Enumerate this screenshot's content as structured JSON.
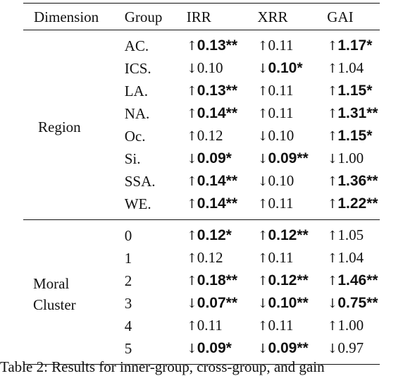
{
  "headers": {
    "dimension": "Dimension",
    "group": "Group",
    "irr": "IRR",
    "xrr": "XRR",
    "gai": "GAI"
  },
  "sections": [
    {
      "dimension": "Region",
      "rows": [
        {
          "group": "AC.",
          "irr": {
            "arrow": "↑",
            "value": "0.13",
            "stars": "**",
            "bold": true
          },
          "xrr": {
            "arrow": "↑",
            "value": "0.11",
            "stars": "",
            "bold": false
          },
          "gai": {
            "arrow": "↑",
            "value": "1.17",
            "stars": "*",
            "bold": true
          }
        },
        {
          "group": "ICS.",
          "irr": {
            "arrow": "↓",
            "value": "0.10",
            "stars": "",
            "bold": false
          },
          "xrr": {
            "arrow": "↓",
            "value": "0.10",
            "stars": "*",
            "bold": true
          },
          "gai": {
            "arrow": "↑",
            "value": "1.04",
            "stars": "",
            "bold": false
          }
        },
        {
          "group": "LA.",
          "irr": {
            "arrow": "↑",
            "value": "0.13",
            "stars": "**",
            "bold": true
          },
          "xrr": {
            "arrow": "↑",
            "value": "0.11",
            "stars": "",
            "bold": false
          },
          "gai": {
            "arrow": "↑",
            "value": "1.15",
            "stars": "*",
            "bold": true
          }
        },
        {
          "group": "NA.",
          "irr": {
            "arrow": "↑",
            "value": "0.14",
            "stars": "**",
            "bold": true
          },
          "xrr": {
            "arrow": "↑",
            "value": "0.11",
            "stars": "",
            "bold": false
          },
          "gai": {
            "arrow": "↑",
            "value": "1.31",
            "stars": "**",
            "bold": true
          }
        },
        {
          "group": "Oc.",
          "irr": {
            "arrow": "↑",
            "value": "0.12",
            "stars": "",
            "bold": false
          },
          "xrr": {
            "arrow": "↓",
            "value": "0.10",
            "stars": "",
            "bold": false
          },
          "gai": {
            "arrow": "↑",
            "value": "1.15",
            "stars": "*",
            "bold": true
          }
        },
        {
          "group": "Si.",
          "irr": {
            "arrow": "↓",
            "value": "0.09",
            "stars": "*",
            "bold": true
          },
          "xrr": {
            "arrow": "↓",
            "value": "0.09",
            "stars": "**",
            "bold": true
          },
          "gai": {
            "arrow": "↓",
            "value": "1.00",
            "stars": "",
            "bold": false
          }
        },
        {
          "group": "SSA.",
          "irr": {
            "arrow": "↑",
            "value": "0.14",
            "stars": "**",
            "bold": true
          },
          "xrr": {
            "arrow": "↓",
            "value": "0.10",
            "stars": "",
            "bold": false
          },
          "gai": {
            "arrow": "↑",
            "value": "1.36",
            "stars": "**",
            "bold": true
          }
        },
        {
          "group": "WE.",
          "irr": {
            "arrow": "↑",
            "value": "0.14",
            "stars": "**",
            "bold": true
          },
          "xrr": {
            "arrow": "↑",
            "value": "0.11",
            "stars": "",
            "bold": false
          },
          "gai": {
            "arrow": "↑",
            "value": "1.22",
            "stars": "**",
            "bold": true
          }
        }
      ]
    },
    {
      "dimension": "Moral Cluster",
      "dimension_lines": [
        "Moral",
        "Cluster"
      ],
      "rows": [
        {
          "group": "0",
          "irr": {
            "arrow": "↑",
            "value": "0.12",
            "stars": "*",
            "bold": true
          },
          "xrr": {
            "arrow": "↑",
            "value": "0.12",
            "stars": "**",
            "bold": true
          },
          "gai": {
            "arrow": "↑",
            "value": "1.05",
            "stars": "",
            "bold": false
          }
        },
        {
          "group": "1",
          "irr": {
            "arrow": "↑",
            "value": "0.12",
            "stars": "",
            "bold": false
          },
          "xrr": {
            "arrow": "↑",
            "value": "0.11",
            "stars": "",
            "bold": false
          },
          "gai": {
            "arrow": "↑",
            "value": "1.04",
            "stars": "",
            "bold": false
          }
        },
        {
          "group": "2",
          "irr": {
            "arrow": "↑",
            "value": "0.18",
            "stars": "**",
            "bold": true
          },
          "xrr": {
            "arrow": "↑",
            "value": "0.12",
            "stars": "**",
            "bold": true
          },
          "gai": {
            "arrow": "↑",
            "value": "1.46",
            "stars": "**",
            "bold": true
          }
        },
        {
          "group": "3",
          "irr": {
            "arrow": "↓",
            "value": "0.07",
            "stars": "**",
            "bold": true
          },
          "xrr": {
            "arrow": "↓",
            "value": "0.10",
            "stars": "**",
            "bold": true
          },
          "gai": {
            "arrow": "↓",
            "value": "0.75",
            "stars": "**",
            "bold": true
          }
        },
        {
          "group": "4",
          "irr": {
            "arrow": "↑",
            "value": "0.11",
            "stars": "",
            "bold": false
          },
          "xrr": {
            "arrow": "↑",
            "value": "0.11",
            "stars": "",
            "bold": false
          },
          "gai": {
            "arrow": "↑",
            "value": "1.00",
            "stars": "",
            "bold": false
          }
        },
        {
          "group": "5",
          "irr": {
            "arrow": "↓",
            "value": "0.09",
            "stars": "*",
            "bold": true
          },
          "xrr": {
            "arrow": "↓",
            "value": "0.09",
            "stars": "**",
            "bold": true
          },
          "gai": {
            "arrow": "↓",
            "value": "0.97",
            "stars": "",
            "bold": false
          }
        }
      ]
    }
  ],
  "caption": "Table 2: Results for inner-group, cross-group, and gain"
}
